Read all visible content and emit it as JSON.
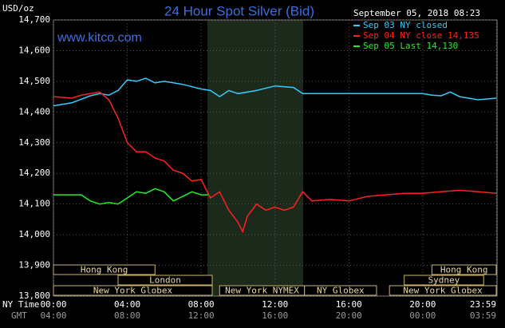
{
  "chart_data": {
    "type": "line",
    "title": "24 Hour Spot Silver (Bid)",
    "subtitle": "www.kitco.com",
    "timestamp": "September 05, 2018 08:23",
    "y_label": "USD/oz",
    "x_label": "NY Time",
    "x2_label": "GMT",
    "xlim": [
      0,
      23.983
    ],
    "ylim": [
      13800,
      14700
    ],
    "xticks": [
      {
        "value": 0,
        "label": "00:00"
      },
      {
        "value": 4,
        "label": "04:00"
      },
      {
        "value": 8,
        "label": "08:00"
      },
      {
        "value": 12,
        "label": "12:00"
      },
      {
        "value": 16,
        "label": "16:00"
      },
      {
        "value": 20,
        "label": "20:00"
      },
      {
        "value": 23.983,
        "label": "23:59"
      }
    ],
    "x2ticks": [
      {
        "value": 0,
        "label": "04:00"
      },
      {
        "value": 4,
        "label": "08:00"
      },
      {
        "value": 8,
        "label": "12:00"
      },
      {
        "value": 12,
        "label": "16:00"
      },
      {
        "value": 16,
        "label": "20:00"
      },
      {
        "value": 20,
        "label": "00:00"
      },
      {
        "value": 23.983,
        "label": "03:59"
      }
    ],
    "yticks": [
      {
        "value": 13800,
        "label": "13,800"
      },
      {
        "value": 13900,
        "label": "13,900"
      },
      {
        "value": 14000,
        "label": "14,000"
      },
      {
        "value": 14100,
        "label": "14,100"
      },
      {
        "value": 14200,
        "label": "14,200"
      },
      {
        "value": 14300,
        "label": "14,300"
      },
      {
        "value": 14400,
        "label": "14,400"
      },
      {
        "value": 14500,
        "label": "14,500"
      },
      {
        "value": 14600,
        "label": "14,600"
      },
      {
        "value": 14700,
        "label": "14,700"
      }
    ],
    "grid": true,
    "series": [
      {
        "name": "Sep 03 NY closed",
        "color": "#33ccff",
        "x": [
          0,
          1,
          2,
          2.5,
          3,
          3.5,
          4,
          4.5,
          5,
          5.5,
          6,
          7,
          8,
          8.5,
          9,
          9.5,
          10,
          11,
          12,
          13,
          13.5,
          15,
          17,
          19,
          20,
          20.5,
          21,
          21.5,
          22,
          23,
          23.983
        ],
        "values": [
          14420,
          14430,
          14453,
          14460,
          14455,
          14470,
          14505,
          14500,
          14510,
          14495,
          14500,
          14490,
          14475,
          14470,
          14450,
          14470,
          14460,
          14470,
          14485,
          14480,
          14460,
          14460,
          14460,
          14460,
          14460,
          14455,
          14453,
          14465,
          14450,
          14440,
          14445
        ]
      },
      {
        "name": "Sep 04 NY close 14,135",
        "color": "#ff2020",
        "x": [
          0,
          1,
          1.5,
          2,
          2.5,
          3,
          3.5,
          4,
          4.5,
          5,
          5.5,
          6,
          6.5,
          7,
          7.5,
          8,
          8.5,
          9,
          9.5,
          10,
          10.25,
          10.5,
          11,
          11.5,
          12,
          12.5,
          13,
          13.5,
          14,
          15,
          16,
          17,
          18,
          19,
          20,
          21,
          22,
          23,
          23.983
        ],
        "values": [
          14450,
          14445,
          14455,
          14460,
          14465,
          14440,
          14380,
          14300,
          14270,
          14270,
          14250,
          14240,
          14210,
          14200,
          14175,
          14180,
          14120,
          14140,
          14080,
          14040,
          14010,
          14060,
          14100,
          14080,
          14090,
          14080,
          14090,
          14140,
          14110,
          14115,
          14110,
          14125,
          14130,
          14135,
          14135,
          14140,
          14145,
          14140,
          14135
        ]
      },
      {
        "name": "Sep 05 Last 14,130",
        "color": "#22ee22",
        "x": [
          0,
          1,
          1.5,
          2,
          2.5,
          3,
          3.5,
          4,
          4.5,
          5,
          5.5,
          6,
          6.5,
          7,
          7.5,
          8,
          8.38
        ],
        "values": [
          14130,
          14130,
          14130,
          14110,
          14100,
          14105,
          14100,
          14120,
          14140,
          14135,
          14150,
          14140,
          14110,
          14125,
          14140,
          14130,
          14130
        ]
      }
    ],
    "sessions": [
      {
        "label": "Hong Kong",
        "start": 0,
        "end": 5.5
      },
      {
        "label": "Hong Kong",
        "start": 20.5,
        "end": 23.983
      },
      {
        "label": "London",
        "start": 3.5,
        "end": 8.6
      },
      {
        "label": "Sydney",
        "start": 19,
        "end": 23.3
      },
      {
        "label": "New York Globex",
        "start": 0,
        "end": 8.6
      },
      {
        "label": "New York NYMEX",
        "start": 9,
        "end": 13.6
      },
      {
        "label": "NY Globex",
        "start": 13.6,
        "end": 17.5
      },
      {
        "label": "New York Globex",
        "start": 18.2,
        "end": 23.983
      }
    ]
  }
}
